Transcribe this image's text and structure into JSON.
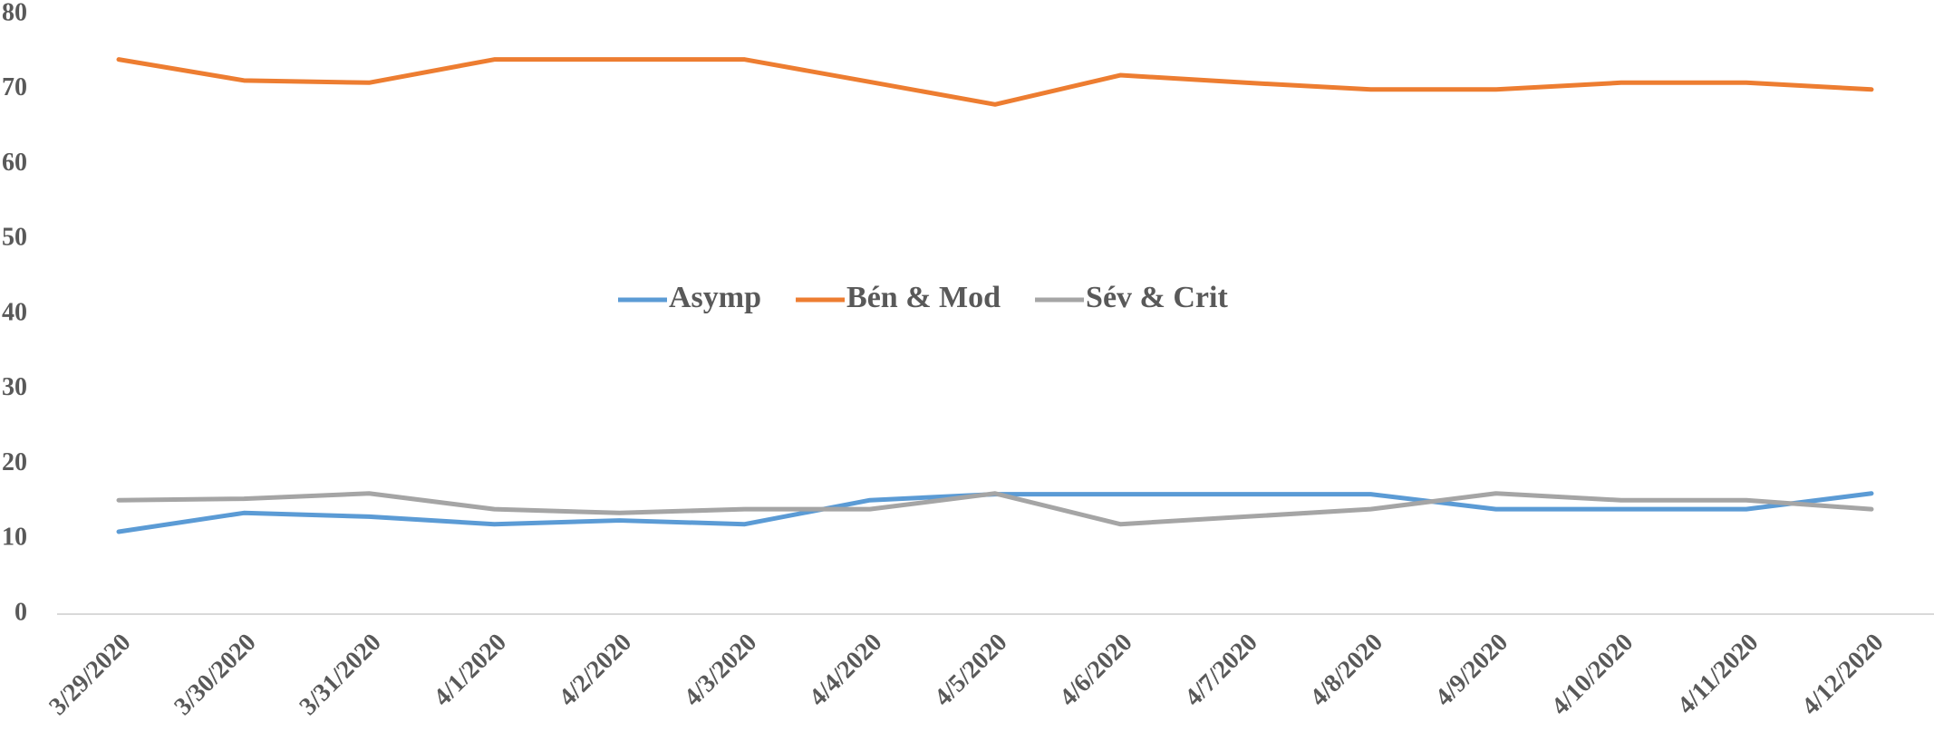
{
  "chart_data": {
    "type": "line",
    "categories": [
      "3/29/2020",
      "3/30/2020",
      "3/31/2020",
      "4/1/2020",
      "4/2/2020",
      "4/3/2020",
      "4/4/2020",
      "4/5/2020",
      "4/6/2020",
      "4/7/2020",
      "4/8/2020",
      "4/9/2020",
      "4/10/2020",
      "4/11/2020",
      "4/12/2020"
    ],
    "series": [
      {
        "name": "Asymp",
        "color": "#5b9bd5",
        "values": [
          11,
          13.5,
          13,
          12,
          12.5,
          12,
          15.2,
          16,
          16,
          16,
          16,
          14,
          14,
          14,
          16.1
        ]
      },
      {
        "name": "Bén & Mod",
        "color": "#ed7d31",
        "values": [
          74,
          71.2,
          70.9,
          74,
          74,
          74,
          71,
          68,
          71.9,
          70.9,
          70,
          70,
          70.9,
          70.9,
          70
        ]
      },
      {
        "name": "Sév & Crit",
        "color": "#a5a5a5",
        "values": [
          15.2,
          15.4,
          16.1,
          14,
          13.5,
          14,
          14,
          16.1,
          12,
          13,
          14,
          16.1,
          15.2,
          15.2,
          14
        ]
      }
    ],
    "ylim": [
      0,
      80
    ],
    "yticks": [
      0,
      10,
      20,
      30,
      40,
      50,
      60,
      70,
      80
    ],
    "grid": false,
    "legend": "center"
  }
}
